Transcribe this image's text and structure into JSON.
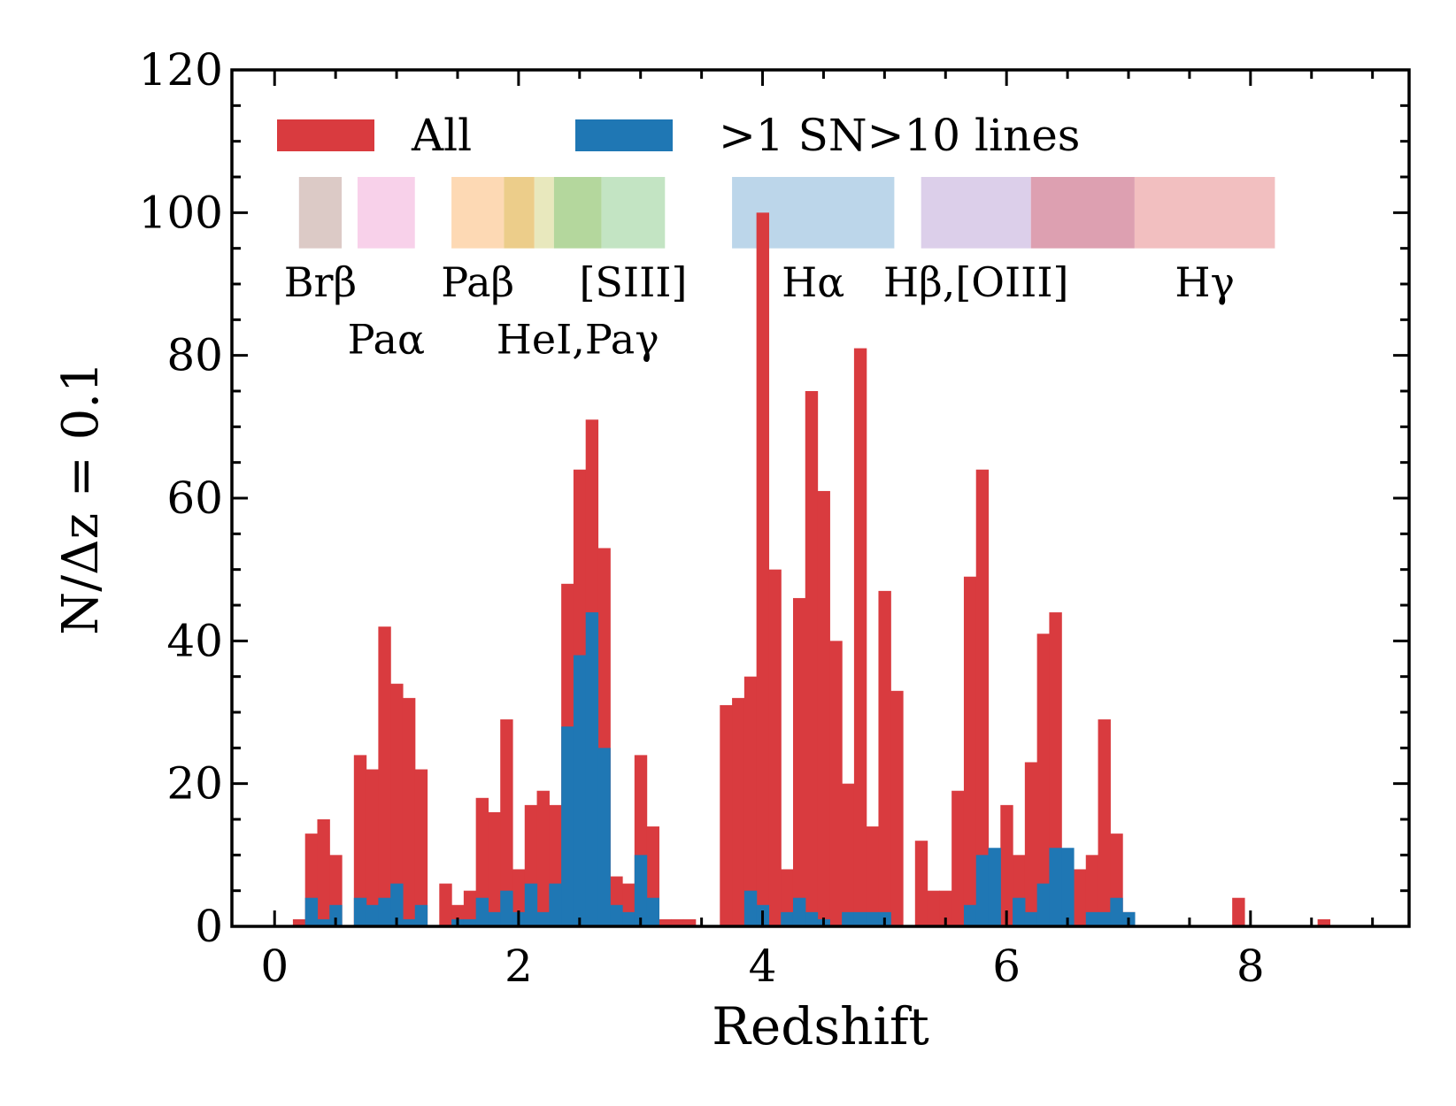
{
  "chart_data": {
    "type": "bar",
    "xlabel": "Redshift",
    "ylabel": "N/Δz = 0.1",
    "xlim": [
      -0.35,
      9.3
    ],
    "ylim": [
      0,
      120
    ],
    "x_ticks": [
      0,
      2,
      4,
      6,
      8
    ],
    "y_ticks": [
      0,
      20,
      40,
      60,
      80,
      100,
      120
    ],
    "bin_width": 0.1,
    "grid": false,
    "legend_position": "top",
    "series": [
      {
        "name": "All",
        "color": "#d93b3f",
        "bins": [
          [
            0.2,
            1
          ],
          [
            0.3,
            13
          ],
          [
            0.4,
            15
          ],
          [
            0.5,
            10
          ],
          [
            0.7,
            24
          ],
          [
            0.8,
            22
          ],
          [
            0.9,
            42
          ],
          [
            1.0,
            34
          ],
          [
            1.1,
            32
          ],
          [
            1.2,
            22
          ],
          [
            1.4,
            6
          ],
          [
            1.5,
            3
          ],
          [
            1.6,
            5
          ],
          [
            1.7,
            18
          ],
          [
            1.8,
            16
          ],
          [
            1.9,
            29
          ],
          [
            2.0,
            8
          ],
          [
            2.1,
            17
          ],
          [
            2.2,
            19
          ],
          [
            2.3,
            17
          ],
          [
            2.4,
            48
          ],
          [
            2.5,
            64
          ],
          [
            2.6,
            71
          ],
          [
            2.7,
            53
          ],
          [
            2.8,
            7
          ],
          [
            2.9,
            6
          ],
          [
            3.0,
            24
          ],
          [
            3.1,
            14
          ],
          [
            3.2,
            1
          ],
          [
            3.3,
            1
          ],
          [
            3.4,
            1
          ],
          [
            3.7,
            31
          ],
          [
            3.8,
            32
          ],
          [
            3.9,
            35
          ],
          [
            4.0,
            100
          ],
          [
            4.1,
            50
          ],
          [
            4.2,
            8
          ],
          [
            4.3,
            46
          ],
          [
            4.4,
            75
          ],
          [
            4.5,
            61
          ],
          [
            4.6,
            40
          ],
          [
            4.7,
            20
          ],
          [
            4.8,
            81
          ],
          [
            4.9,
            14
          ],
          [
            5.0,
            47
          ],
          [
            5.1,
            33
          ],
          [
            5.3,
            12
          ],
          [
            5.4,
            5
          ],
          [
            5.5,
            5
          ],
          [
            5.6,
            19
          ],
          [
            5.7,
            49
          ],
          [
            5.8,
            64
          ],
          [
            5.9,
            6
          ],
          [
            6.0,
            17
          ],
          [
            6.1,
            10
          ],
          [
            6.2,
            23
          ],
          [
            6.3,
            41
          ],
          [
            6.4,
            44
          ],
          [
            6.5,
            7
          ],
          [
            6.6,
            8
          ],
          [
            6.7,
            10
          ],
          [
            6.8,
            29
          ],
          [
            6.9,
            13
          ],
          [
            7.0,
            2
          ],
          [
            7.9,
            4
          ],
          [
            8.6,
            1
          ]
        ]
      },
      {
        "name": ">1 SN>10 lines",
        "color": "#1f77b4",
        "bins": [
          [
            0.3,
            4
          ],
          [
            0.4,
            1
          ],
          [
            0.5,
            3
          ],
          [
            0.7,
            4
          ],
          [
            0.8,
            3
          ],
          [
            0.9,
            4
          ],
          [
            1.0,
            6
          ],
          [
            1.1,
            1
          ],
          [
            1.2,
            3
          ],
          [
            1.5,
            1
          ],
          [
            1.6,
            1
          ],
          [
            1.7,
            4
          ],
          [
            1.8,
            2
          ],
          [
            1.9,
            5
          ],
          [
            2.0,
            2
          ],
          [
            2.1,
            6
          ],
          [
            2.2,
            2
          ],
          [
            2.3,
            6
          ],
          [
            2.4,
            28
          ],
          [
            2.5,
            38
          ],
          [
            2.6,
            44
          ],
          [
            2.7,
            25
          ],
          [
            2.8,
            3
          ],
          [
            2.9,
            2
          ],
          [
            3.0,
            10
          ],
          [
            3.1,
            4
          ],
          [
            3.9,
            5
          ],
          [
            4.0,
            3
          ],
          [
            4.2,
            2
          ],
          [
            4.3,
            4
          ],
          [
            4.4,
            2
          ],
          [
            4.5,
            1
          ],
          [
            4.7,
            2
          ],
          [
            4.8,
            2
          ],
          [
            4.9,
            2
          ],
          [
            5.0,
            2
          ],
          [
            5.7,
            3
          ],
          [
            5.8,
            10
          ],
          [
            5.9,
            11
          ],
          [
            6.1,
            4
          ],
          [
            6.2,
            2
          ],
          [
            6.3,
            6
          ],
          [
            6.4,
            11
          ],
          [
            6.5,
            11
          ],
          [
            6.7,
            2
          ],
          [
            6.8,
            2
          ],
          [
            6.9,
            4
          ],
          [
            7.0,
            2
          ]
        ]
      }
    ],
    "line_bands": [
      {
        "label": "Brβ",
        "z_range": [
          0.2,
          0.55
        ],
        "color": "#dccac6",
        "label_row": 1
      },
      {
        "label": "Paα",
        "z_range": [
          0.68,
          1.15
        ],
        "color": "#f8d1ea",
        "label_row": 2
      },
      {
        "label": "Paβ",
        "z_range": [
          1.45,
          1.88
        ],
        "color": "#fdd9b4",
        "label_row": 1
      },
      {
        "label": "",
        "z_range": [
          1.88,
          2.13
        ],
        "color": "#eccd8a",
        "label_row": 0
      },
      {
        "label": "",
        "z_range": [
          2.13,
          2.29
        ],
        "color": "#e8e8bd",
        "label_row": 0
      },
      {
        "label": "HeI,Paγ",
        "z_range": [
          2.29,
          2.68
        ],
        "color": "#b4d79d",
        "label_row": 2
      },
      {
        "label": "[SIII]",
        "z_range": [
          2.68,
          3.2
        ],
        "color": "#c3e4c3",
        "label_row": 1
      },
      {
        "label": "Hα",
        "z_range": [
          3.75,
          5.08
        ],
        "color": "#bcd6ea",
        "label_row": 1
      },
      {
        "label": "Hβ,[OIII]",
        "z_range": [
          5.3,
          6.2
        ],
        "color": "#dccfea",
        "label_row": 1
      },
      {
        "label": "",
        "z_range": [
          6.2,
          7.05
        ],
        "color": "#dda0b1",
        "label_row": 0
      },
      {
        "label": "Hγ",
        "z_range": [
          7.05,
          8.2
        ],
        "color": "#f2bfc0",
        "label_row": 1
      }
    ]
  }
}
